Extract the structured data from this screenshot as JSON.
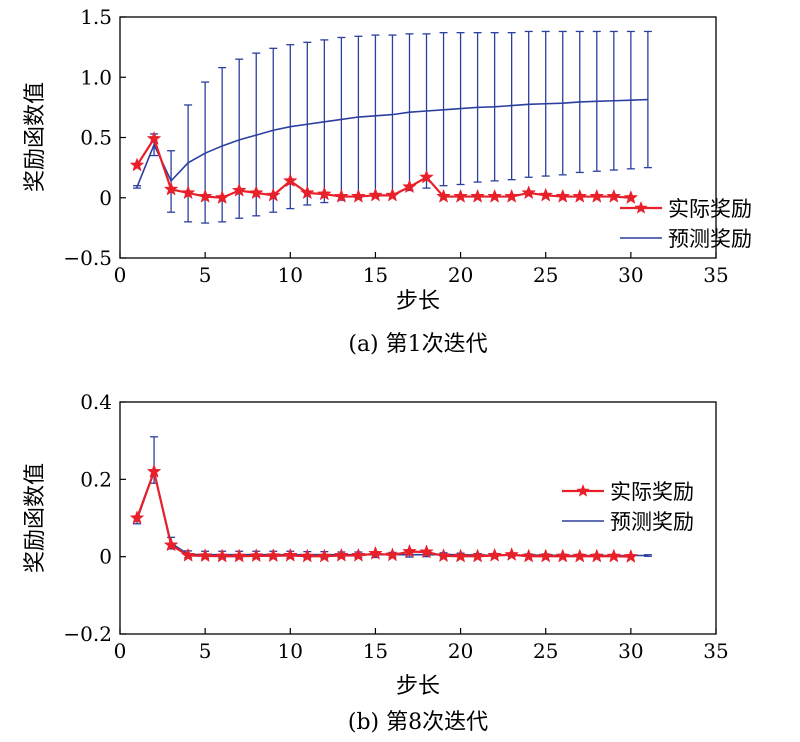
{
  "chart_data": [
    {
      "type": "line",
      "caption": "(a) 第1次迭代",
      "xlabel": "步长",
      "ylabel": "奖励函数值",
      "xlim": [
        0,
        35
      ],
      "ylim": [
        -0.5,
        1.5
      ],
      "xticks": [
        "0",
        "5",
        "10",
        "15",
        "20",
        "25",
        "30",
        "35"
      ],
      "yticks": [
        "−0.5",
        "0",
        "0.5",
        "1.0",
        "1.5"
      ],
      "legend_position": "right",
      "series": [
        {
          "name": "实际奖励",
          "color": "#e8202a",
          "marker": "star",
          "x": [
            1,
            2,
            3,
            4,
            5,
            6,
            7,
            8,
            9,
            10,
            11,
            12,
            13,
            14,
            15,
            16,
            17,
            18,
            19,
            20,
            21,
            22,
            23,
            24,
            25,
            26,
            27,
            28,
            29,
            30
          ],
          "y": [
            0.27,
            0.49,
            0.07,
            0.04,
            0.01,
            0.0,
            0.06,
            0.04,
            0.02,
            0.14,
            0.04,
            0.03,
            0.01,
            0.01,
            0.02,
            0.02,
            0.09,
            0.17,
            0.01,
            0.01,
            0.01,
            0.01,
            0.01,
            0.04,
            0.02,
            0.01,
            0.01,
            0.01,
            0.01,
            0.0
          ]
        },
        {
          "name": "预测奖励",
          "color": "#2b3f9e",
          "x": [
            1,
            2,
            3,
            4,
            5,
            6,
            7,
            8,
            9,
            10,
            11,
            12,
            13,
            14,
            15,
            16,
            17,
            18,
            19,
            20,
            21,
            22,
            23,
            24,
            25,
            26,
            27,
            28,
            29,
            30,
            31
          ],
          "y": [
            0.09,
            0.44,
            0.14,
            0.29,
            0.37,
            0.43,
            0.48,
            0.52,
            0.56,
            0.59,
            0.61,
            0.63,
            0.65,
            0.67,
            0.68,
            0.69,
            0.71,
            0.72,
            0.73,
            0.74,
            0.75,
            0.755,
            0.765,
            0.775,
            0.78,
            0.785,
            0.795,
            0.8,
            0.805,
            0.81,
            0.815
          ],
          "error_upper": [
            0.1,
            0.53,
            0.39,
            0.77,
            0.96,
            1.08,
            1.15,
            1.2,
            1.24,
            1.27,
            1.29,
            1.31,
            1.33,
            1.34,
            1.35,
            1.35,
            1.36,
            1.36,
            1.37,
            1.37,
            1.37,
            1.37,
            1.37,
            1.38,
            1.38,
            1.38,
            1.38,
            1.38,
            1.38,
            1.38,
            1.38
          ],
          "error_lower": [
            0.08,
            0.35,
            -0.12,
            -0.2,
            -0.21,
            -0.2,
            -0.17,
            -0.15,
            -0.12,
            -0.09,
            -0.06,
            -0.04,
            -0.02,
            0.0,
            0.01,
            0.03,
            0.06,
            0.08,
            0.1,
            0.11,
            0.13,
            0.14,
            0.15,
            0.17,
            0.18,
            0.19,
            0.21,
            0.22,
            0.23,
            0.24,
            0.25
          ]
        }
      ]
    },
    {
      "type": "line",
      "caption": "(b) 第8次迭代",
      "xlabel": "步长",
      "ylabel": "奖励函数值",
      "xlim": [
        0,
        35
      ],
      "ylim": [
        -0.2,
        0.4
      ],
      "xticks": [
        "0",
        "5",
        "10",
        "15",
        "20",
        "25",
        "30",
        "35"
      ],
      "yticks": [
        "−0.2",
        "0",
        "0.2",
        "0.4"
      ],
      "legend_position": "right",
      "series": [
        {
          "name": "实际奖励",
          "color": "#e8202a",
          "marker": "star",
          "x": [
            1,
            2,
            3,
            4,
            5,
            6,
            7,
            8,
            9,
            10,
            11,
            12,
            13,
            14,
            15,
            16,
            17,
            18,
            19,
            20,
            21,
            22,
            23,
            24,
            25,
            26,
            27,
            28,
            29,
            30
          ],
          "y": [
            0.1,
            0.22,
            0.03,
            0.003,
            0.002,
            0.001,
            0.001,
            0.002,
            0.002,
            0.003,
            0.001,
            0.001,
            0.003,
            0.003,
            0.008,
            0.004,
            0.013,
            0.012,
            0.002,
            0.001,
            0.001,
            0.003,
            0.005,
            0.001,
            0.001,
            0.001,
            0.001,
            0.001,
            0.001,
            0.0
          ]
        },
        {
          "name": "预测奖励",
          "color": "#2b3f9e",
          "x": [
            1,
            2,
            3,
            4,
            5,
            6,
            7,
            8,
            9,
            10,
            11,
            12,
            13,
            14,
            15,
            16,
            17,
            18,
            19,
            20,
            21,
            22,
            23,
            24,
            25,
            26,
            27,
            28,
            29,
            30,
            31
          ],
          "y": [
            0.095,
            0.22,
            0.035,
            0.006,
            0.005,
            0.005,
            0.005,
            0.005,
            0.005,
            0.005,
            0.005,
            0.005,
            0.005,
            0.005,
            0.005,
            0.005,
            0.005,
            0.005,
            0.005,
            0.005,
            0.004,
            0.004,
            0.004,
            0.004,
            0.004,
            0.003,
            0.003,
            0.003,
            0.003,
            0.003,
            0.003
          ],
          "error_upper": [
            0.105,
            0.31,
            0.05,
            0.015,
            0.014,
            0.014,
            0.014,
            0.014,
            0.014,
            0.014,
            0.013,
            0.013,
            0.012,
            0.012,
            0.012,
            0.011,
            0.011,
            0.01,
            0.01,
            0.009,
            0.008,
            0.008,
            0.007,
            0.007,
            0.007,
            0.006,
            0.006,
            0.006,
            0.005,
            0.005,
            0.005
          ],
          "error_lower": [
            0.085,
            0.19,
            0.02,
            -0.003,
            -0.004,
            -0.004,
            -0.004,
            -0.004,
            -0.004,
            -0.004,
            -0.003,
            -0.003,
            -0.002,
            -0.002,
            -0.002,
            -0.001,
            -0.001,
            0.0,
            0.0,
            0.001,
            0.0,
            0.0,
            0.001,
            0.001,
            0.001,
            0.0,
            0.0,
            0.0,
            0.001,
            0.001,
            0.001
          ]
        }
      ]
    }
  ]
}
